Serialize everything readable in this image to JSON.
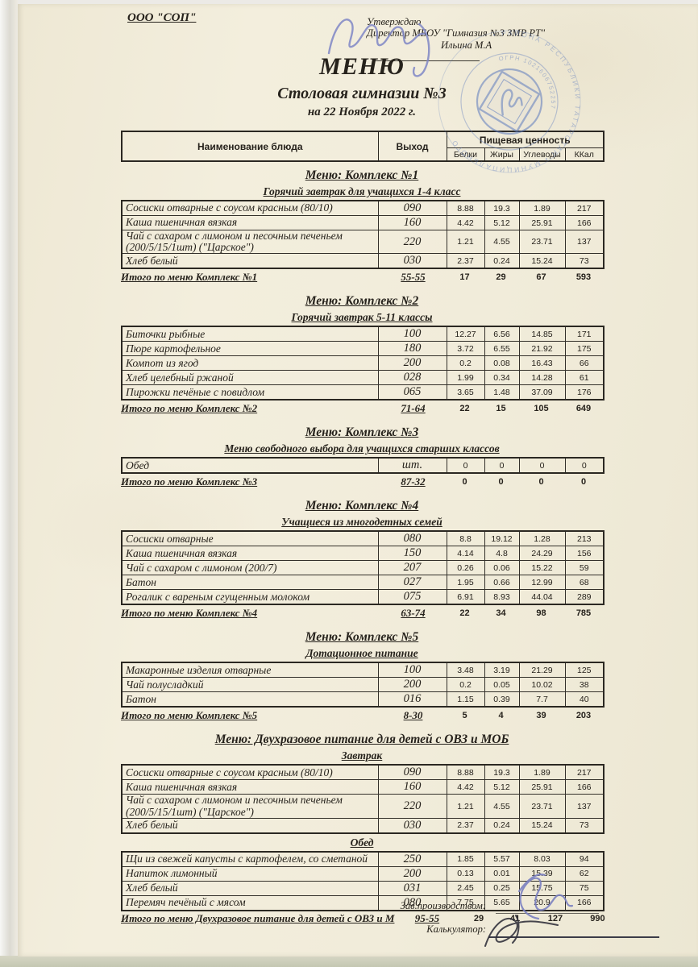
{
  "document": {
    "org": "ООО \"СОП\"",
    "approval": {
      "line1": "Утверждаю",
      "line2": "Директор МБОУ \"Гимназия №3 ЗМР РТ\"",
      "signer": "Ильина М.А"
    },
    "title": "МЕНЮ",
    "subtitle": "Столовая гимназии №3",
    "date": "на 22 Ноября 2022 г."
  },
  "table_header": {
    "name": "Наименование блюда",
    "out": "Выход",
    "nutrition": "Пищевая ценность",
    "cols": [
      "Белки",
      "Жиры",
      "Углеводы",
      "ККал"
    ]
  },
  "sections": [
    {
      "title": "Меню: Комплекс №1",
      "groups": [
        {
          "label": "Горячий завтрак для учащихся 1-4 класс",
          "rows": [
            [
              "Сосиски  отварные с соусом красным (80/10)",
              "090",
              "8.88",
              "19.3",
              "1.89",
              "217"
            ],
            [
              "Каша пшеничная вязкая",
              "160",
              "4.42",
              "5.12",
              "25.91",
              "166"
            ],
            [
              "Чай с сахаром с лимоном и песочным печеньем (200/5/15/1шт) (\"Царское\")",
              "220",
              "1.21",
              "4.55",
              "23.71",
              "137"
            ],
            [
              "Хлеб белый",
              "030",
              "2.37",
              "0.24",
              "15.24",
              "73"
            ]
          ]
        }
      ],
      "total": {
        "label": "Итого по меню Комплекс №1",
        "out": "55-55",
        "values": [
          "17",
          "29",
          "67",
          "593"
        ]
      }
    },
    {
      "title": "Меню: Комплекс №2",
      "groups": [
        {
          "label": "Горячий завтрак 5-11 классы",
          "rows": [
            [
              "Биточки рыбные",
              "100",
              "12.27",
              "6.56",
              "14.85",
              "171"
            ],
            [
              "Пюре картофельное",
              "180",
              "3.72",
              "6.55",
              "21.92",
              "175"
            ],
            [
              "Компот из  ягод",
              "200",
              "0.2",
              "0.08",
              "16.43",
              "66"
            ],
            [
              "Хлеб  целебный ржаной",
              "028",
              "1.99",
              "0.34",
              "14.28",
              "61"
            ],
            [
              "Пирожки печёные с повидлом",
              "065",
              "3.65",
              "1.48",
              "37.09",
              "176"
            ]
          ]
        }
      ],
      "total": {
        "label": "Итого по меню Комплекс №2",
        "out": "71-64",
        "values": [
          "22",
          "15",
          "105",
          "649"
        ]
      }
    },
    {
      "title": "Меню: Комплекс №3",
      "groups": [
        {
          "label": "Меню свободного выбора для учащихся старших классов",
          "rows": [
            [
              "Обед",
              "шт.",
              "0",
              "0",
              "0",
              "0"
            ]
          ]
        }
      ],
      "total": {
        "label": "Итого по меню Комплекс №3",
        "out": "87-32",
        "values": [
          "0",
          "0",
          "0",
          "0"
        ]
      }
    },
    {
      "title": "Меню: Комплекс №4",
      "groups": [
        {
          "label": "Учащиеся из многодетных семей",
          "rows": [
            [
              "Сосиски  отварные",
              "080",
              "8.8",
              "19.12",
              "1.28",
              "213"
            ],
            [
              "Каша пшеничная вязкая",
              "150",
              "4.14",
              "4.8",
              "24.29",
              "156"
            ],
            [
              "Чай с сахаром с лимоном (200/7)",
              "207",
              "0.26",
              "0.06",
              "15.22",
              "59"
            ],
            [
              "Батон",
              "027",
              "1.95",
              "0.66",
              "12.99",
              "68"
            ],
            [
              "Рогалик с вареным сгущенным молоком",
              "075",
              "6.91",
              "8.93",
              "44.04",
              "289"
            ]
          ]
        }
      ],
      "total": {
        "label": "Итого по меню Комплекс №4",
        "out": "63-74",
        "values": [
          "22",
          "34",
          "98",
          "785"
        ]
      }
    },
    {
      "title": "Меню: Комплекс №5",
      "groups": [
        {
          "label": "Дотационное питание",
          "rows": [
            [
              "Макаронные изделия отварные",
              "100",
              "3.48",
              "3.19",
              "21.29",
              "125"
            ],
            [
              "Чай полусладкий",
              "200",
              "0.2",
              "0.05",
              "10.02",
              "38"
            ],
            [
              "Батон",
              "016",
              "1.15",
              "0.39",
              "7.7",
              "40"
            ]
          ]
        }
      ],
      "total": {
        "label": "Итого по меню Комплекс №5",
        "out": "8-30",
        "values": [
          "5",
          "4",
          "39",
          "203"
        ]
      }
    },
    {
      "title": "Меню: Двухразовое питание для детей с ОВЗ и МОБ",
      "groups": [
        {
          "label": "Завтрак",
          "rows": [
            [
              "Сосиски  отварные с соусом красным (80/10)",
              "090",
              "8.88",
              "19.3",
              "1.89",
              "217"
            ],
            [
              "Каша пшеничная вязкая",
              "160",
              "4.42",
              "5.12",
              "25.91",
              "166"
            ],
            [
              "Чай с сахаром с лимоном и песочным печеньем (200/5/15/1шт) (\"Царское\")",
              "220",
              "1.21",
              "4.55",
              "23.71",
              "137"
            ],
            [
              "Хлеб белый",
              "030",
              "2.37",
              "0.24",
              "15.24",
              "73"
            ]
          ]
        },
        {
          "label": "Обед",
          "rows": [
            [
              "Щи из свежей капусты с картофелем, со сметаной",
              "250",
              "1.85",
              "5.57",
              "8.03",
              "94"
            ],
            [
              "Напиток лимонный",
              "200",
              "0.13",
              "0.01",
              "15.39",
              "62"
            ],
            [
              "Хлеб белый",
              "031",
              "2.45",
              "0.25",
              "15.75",
              "75"
            ],
            [
              "Перемяч печёный с мясом",
              "080",
              "7.75",
              "5.65",
              "20.9",
              "166"
            ]
          ]
        }
      ],
      "total": {
        "label": "Итого по меню Двухразовое питание для детей с ОВЗ и М",
        "out": "95-55",
        "values": [
          "29",
          "41",
          "127",
          "990"
        ]
      }
    }
  ],
  "footer": {
    "label1": "Зав.производством:",
    "label2": "Калькулятор:"
  },
  "stamp": {
    "ring_text_outer": "• РАЙОНА РЕСПУБЛИКИ ТАТАРСТАН • МУНИЦИПАЛЬНОГО",
    "ring_text_inner": "ОГРН 1021606752257",
    "color": "#5b79bd"
  }
}
